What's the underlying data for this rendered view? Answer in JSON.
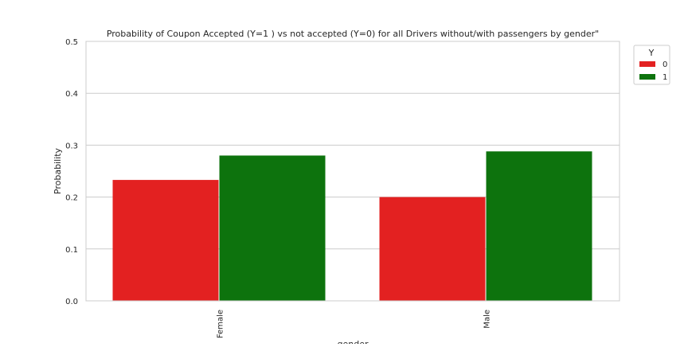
{
  "chart_data": {
    "type": "bar",
    "title": "Probability of Coupon Accepted (Y=1 ) vs not accepted (Y=0) for all Drivers without/with passengers by gender\"",
    "xlabel": "gender",
    "ylabel": "Probability",
    "categories": [
      "Female",
      "Male"
    ],
    "ylim": [
      0,
      0.5
    ],
    "yticks": [
      "0.0",
      "0.1",
      "0.2",
      "0.3",
      "0.4",
      "0.5"
    ],
    "grid": true,
    "legend": {
      "title": "Y",
      "placement": "outside top-right"
    },
    "series": [
      {
        "name": "0",
        "color": "#e32121",
        "values": [
          0.233,
          0.2
        ]
      },
      {
        "name": "1",
        "color": "#0d730d",
        "values": [
          0.28,
          0.288
        ]
      }
    ]
  }
}
